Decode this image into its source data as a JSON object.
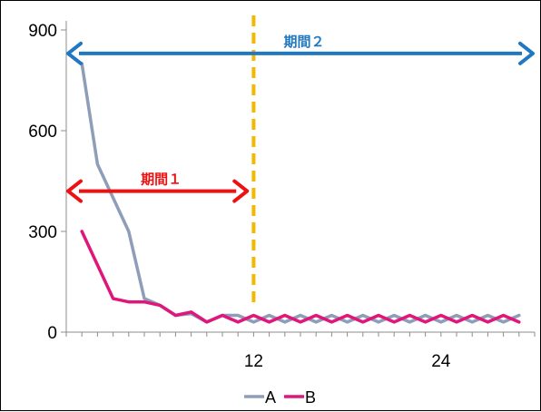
{
  "chart_data": {
    "type": "line",
    "title": "",
    "xlabel": "",
    "ylabel": "",
    "x": [
      1,
      2,
      3,
      4,
      5,
      6,
      7,
      8,
      9,
      10,
      11,
      12,
      13,
      14,
      15,
      16,
      17,
      18,
      19,
      20,
      21,
      22,
      23,
      24,
      25,
      26,
      27,
      28,
      29
    ],
    "xlim": [
      0,
      30
    ],
    "ylim": [
      0,
      900
    ],
    "x_ticks": [
      12,
      24
    ],
    "y_ticks": [
      0,
      300,
      600,
      900
    ],
    "grid": false,
    "legend": "bottom",
    "series": [
      {
        "name": "A",
        "color": "#8e9db8",
        "values": [
          800,
          500,
          400,
          300,
          100,
          80,
          50,
          55,
          30,
          50,
          50,
          30,
          50,
          30,
          50,
          30,
          50,
          30,
          50,
          30,
          50,
          30,
          50,
          30,
          50,
          30,
          50,
          30,
          50
        ]
      },
      {
        "name": "B",
        "color": "#e0177a",
        "values": [
          300,
          200,
          100,
          90,
          90,
          80,
          50,
          60,
          30,
          50,
          30,
          50,
          30,
          50,
          30,
          50,
          30,
          50,
          30,
          50,
          30,
          50,
          30,
          50,
          30,
          50,
          30,
          50,
          30
        ]
      }
    ],
    "annotations": [
      {
        "type": "vline",
        "x": 12,
        "color": "#f5b800",
        "style": "dashed"
      },
      {
        "type": "span-arrow",
        "label": "期間２",
        "x_from": 0,
        "x_to": 30,
        "y": 830,
        "color": "#1f78c1"
      },
      {
        "type": "span-arrow",
        "label": "期間１",
        "x_from": 0,
        "x_to": 11.7,
        "y": 420,
        "color": "#ee1111"
      }
    ]
  }
}
